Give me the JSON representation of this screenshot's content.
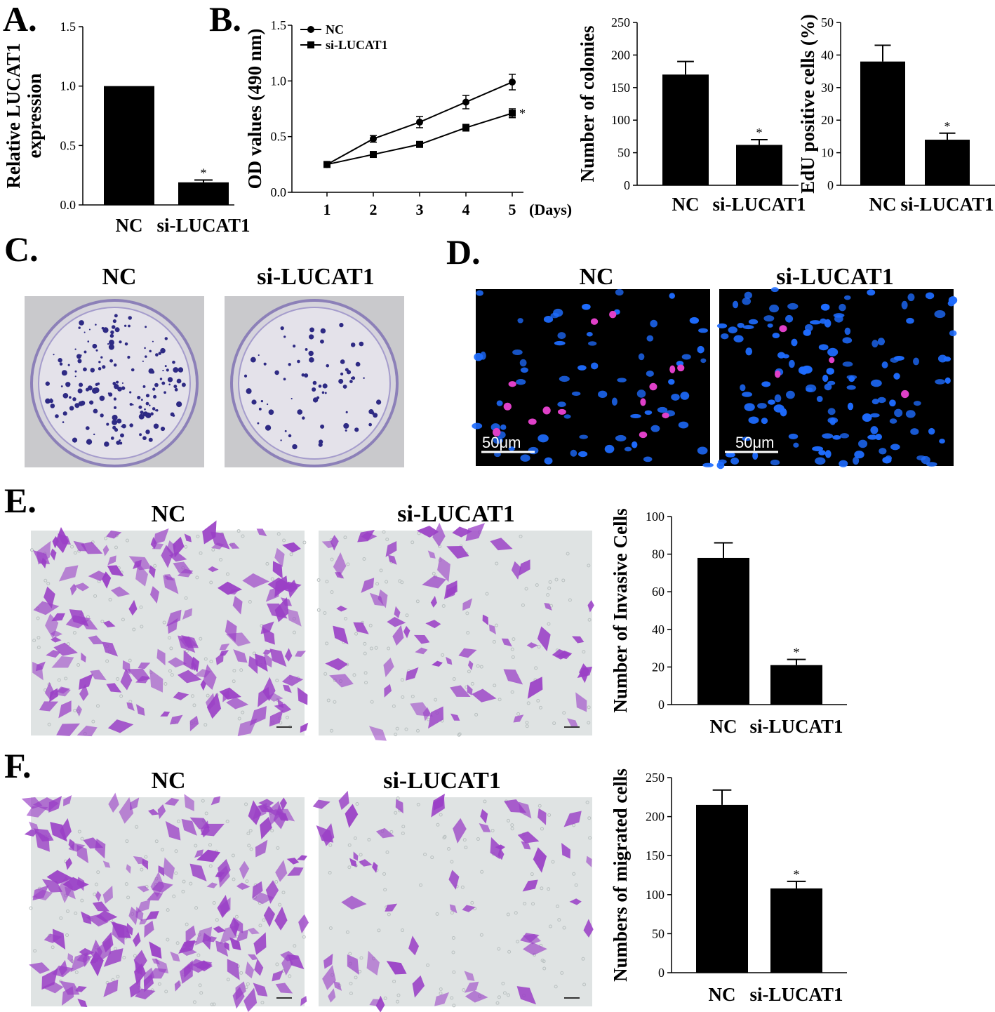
{
  "panels": {
    "A": {
      "letter": "A."
    },
    "B": {
      "letter": "B."
    },
    "C": {
      "letter": "C.",
      "left_label": "NC",
      "right_label": "si-LUCAT1"
    },
    "D": {
      "letter": "D.",
      "left_label": "NC",
      "right_label": "si-LUCAT1",
      "scale_left": "50μm",
      "scale_right": "50μm"
    },
    "E": {
      "letter": "E.",
      "left_label": "NC",
      "right_label": "si-LUCAT1"
    },
    "F": {
      "letter": "F.",
      "left_label": "NC",
      "right_label": "si-LUCAT1"
    }
  },
  "colors": {
    "bar": "#000000",
    "plate_bg": "#c9c9cc",
    "plate_dish": "#e4e2ea",
    "colony": "#2e2a84",
    "fluor_bg": "#000000",
    "nucleus_blue": "#1e6cff",
    "edu_pink": "#e040c8",
    "transwell_bg": "#dfe3e3",
    "cell_purple": "#9a3fc6"
  },
  "chart_data": [
    {
      "id": "A",
      "type": "bar",
      "categories": [
        "NC",
        "si-LUCAT1"
      ],
      "values": [
        1.0,
        0.19
      ],
      "errors": [
        0,
        0.02
      ],
      "significance": [
        "",
        "*"
      ],
      "ylabel": "Relative LUCAT1 expression",
      "ylabel_lines": [
        "Relative LUCAT1",
        "expression"
      ],
      "ylim": [
        0,
        1.5
      ],
      "yticks": [
        "0.0",
        "0.5",
        "1.0",
        "1.5"
      ]
    },
    {
      "id": "B-line",
      "type": "line",
      "x": [
        1,
        2,
        3,
        4,
        5
      ],
      "xlabel_suffix": "(Days)",
      "ylabel": "OD values (490 nm)",
      "ylim": [
        0,
        1.5
      ],
      "yticks": [
        "0.0",
        "0.5",
        "1.0",
        "1.5"
      ],
      "series": [
        {
          "name": "NC",
          "marker": "circle",
          "values": [
            0.25,
            0.48,
            0.63,
            0.81,
            0.99
          ],
          "errors": [
            0.02,
            0.03,
            0.05,
            0.06,
            0.07
          ]
        },
        {
          "name": "si-LUCAT1",
          "marker": "square",
          "values": [
            0.25,
            0.34,
            0.43,
            0.58,
            0.71
          ],
          "errors": [
            0.02,
            0.02,
            0.02,
            0.03,
            0.04
          ]
        }
      ],
      "significance": "*",
      "legend_position": "top-left"
    },
    {
      "id": "B-colonies",
      "type": "bar",
      "categories": [
        "NC",
        "si-LUCAT1"
      ],
      "values": [
        170,
        62
      ],
      "errors": [
        20,
        8
      ],
      "significance": [
        "",
        "*"
      ],
      "ylabel": "Number of colonies",
      "ylim": [
        0,
        250
      ],
      "yticks": [
        "0",
        "50",
        "100",
        "150",
        "200",
        "250"
      ]
    },
    {
      "id": "B-edu",
      "type": "bar",
      "categories": [
        "NC",
        "si-LUCAT1"
      ],
      "values": [
        38,
        14
      ],
      "errors": [
        5,
        2
      ],
      "significance": [
        "",
        "*"
      ],
      "ylabel": "EdU positive cells (%)",
      "ylim": [
        0,
        50
      ],
      "yticks": [
        "0",
        "10",
        "20",
        "30",
        "40",
        "50"
      ]
    },
    {
      "id": "E",
      "type": "bar",
      "categories": [
        "NC",
        "si-LUCAT1"
      ],
      "values": [
        78,
        21
      ],
      "errors": [
        8,
        3
      ],
      "significance": [
        "",
        "*"
      ],
      "ylabel": "Number of Invasive Cells",
      "ylim": [
        0,
        100
      ],
      "yticks": [
        "0",
        "20",
        "40",
        "60",
        "80",
        "100"
      ]
    },
    {
      "id": "F",
      "type": "bar",
      "categories": [
        "NC",
        "si-LUCAT1"
      ],
      "values": [
        215,
        108
      ],
      "errors": [
        19,
        9
      ],
      "significance": [
        "",
        "*"
      ],
      "ylabel": "Numbers of migrated cells",
      "ylim": [
        0,
        250
      ],
      "yticks": [
        "0",
        "50",
        "100",
        "150",
        "200",
        "250"
      ]
    }
  ]
}
